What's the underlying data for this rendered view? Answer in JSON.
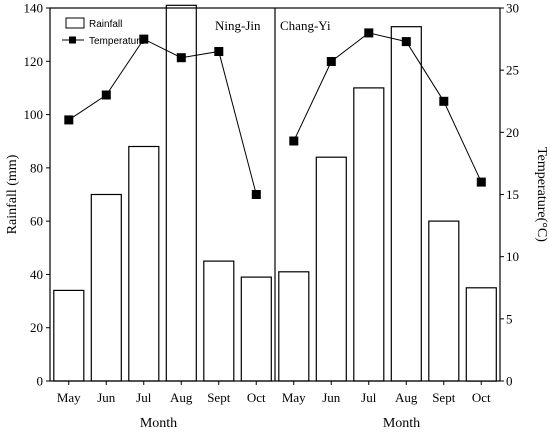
{
  "chart_data": {
    "type": "bar+line",
    "y_left": {
      "label": "Rainfall (mm)",
      "ylim": [
        0,
        140
      ],
      "ticks": [
        0,
        20,
        40,
        60,
        80,
        100,
        120,
        140
      ]
    },
    "y_right": {
      "label": "Temperature(°C)",
      "ylim": [
        0,
        30
      ],
      "ticks": [
        0,
        5,
        10,
        15,
        20,
        25,
        30
      ]
    },
    "legend": {
      "placement": "top-left",
      "items": [
        "Rainfall",
        "Temperature"
      ]
    },
    "grid": false,
    "panels": [
      {
        "label": "Ning-Jin",
        "xlabel": "Month",
        "categories": [
          "May",
          "Jun",
          "Jul",
          "Aug",
          "Sept",
          "Oct"
        ],
        "series": [
          {
            "name": "Rainfall",
            "kind": "bar",
            "axis": "left",
            "values": [
              34,
              70,
              88,
              141,
              45,
              39
            ]
          },
          {
            "name": "Temperature",
            "kind": "line",
            "axis": "right",
            "values": [
              21.0,
              23.0,
              27.5,
              26.0,
              26.5,
              15.0
            ]
          }
        ]
      },
      {
        "label": "Chang-Yi",
        "xlabel": "Month",
        "categories": [
          "May",
          "Jun",
          "Jul",
          "Aug",
          "Sept",
          "Oct"
        ],
        "series": [
          {
            "name": "Rainfall",
            "kind": "bar",
            "axis": "left",
            "values": [
              41,
              84,
              110,
              133,
              60,
              35
            ]
          },
          {
            "name": "Temperature",
            "kind": "line",
            "axis": "right",
            "values": [
              19.3,
              25.7,
              28.0,
              27.3,
              22.5,
              16.0
            ]
          }
        ]
      }
    ]
  }
}
